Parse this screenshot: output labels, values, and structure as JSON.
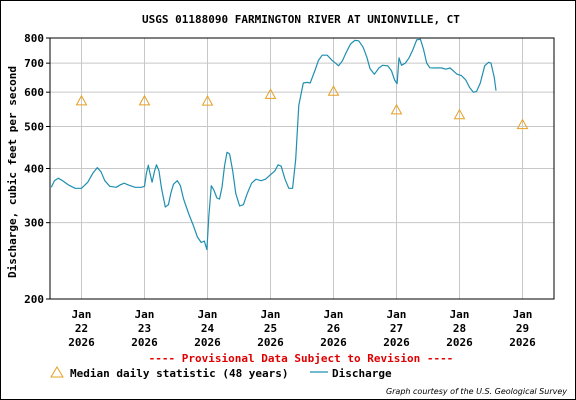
{
  "chart_data": {
    "type": "line",
    "title": "USGS 01188090 FARMINGTON RIVER AT UNIONVILLE, CT",
    "ylabel": "Discharge, cubic feet per second",
    "xlabel": "",
    "y_scale": "log",
    "ylim": [
      200,
      800
    ],
    "xlim": [
      21.5,
      29.5
    ],
    "y_ticks": [
      {
        "v": 200,
        "label": "200"
      },
      {
        "v": 300,
        "label": "300"
      },
      {
        "v": 400,
        "label": "400"
      },
      {
        "v": 500,
        "label": "500"
      },
      {
        "v": 600,
        "label": "600"
      },
      {
        "v": 700,
        "label": "700"
      },
      {
        "v": 800,
        "label": "800"
      }
    ],
    "x_ticks": [
      {
        "v": 22,
        "mon": "Jan",
        "day": "22",
        "year": "2026"
      },
      {
        "v": 23,
        "mon": "Jan",
        "day": "23",
        "year": "2026"
      },
      {
        "v": 24,
        "mon": "Jan",
        "day": "24",
        "year": "2026"
      },
      {
        "v": 25,
        "mon": "Jan",
        "day": "25",
        "year": "2026"
      },
      {
        "v": 26,
        "mon": "Jan",
        "day": "26",
        "year": "2026"
      },
      {
        "v": 27,
        "mon": "Jan",
        "day": "27",
        "year": "2026"
      },
      {
        "v": 28,
        "mon": "Jan",
        "day": "28",
        "year": "2026"
      },
      {
        "v": 29,
        "mon": "Jan",
        "day": "29",
        "year": "2026"
      }
    ],
    "grid": true,
    "series": [
      {
        "name": "Discharge",
        "color": "#1f8fb0",
        "style": "line",
        "points": [
          [
            21.52,
            362
          ],
          [
            21.57,
            375
          ],
          [
            21.63,
            380
          ],
          [
            21.7,
            375
          ],
          [
            21.8,
            366
          ],
          [
            21.9,
            360
          ],
          [
            22.0,
            360
          ],
          [
            22.1,
            372
          ],
          [
            22.18,
            390
          ],
          [
            22.25,
            402
          ],
          [
            22.31,
            393
          ],
          [
            22.37,
            375
          ],
          [
            22.45,
            364
          ],
          [
            22.55,
            362
          ],
          [
            22.62,
            367
          ],
          [
            22.68,
            370
          ],
          [
            22.75,
            366
          ],
          [
            22.85,
            362
          ],
          [
            22.95,
            362
          ],
          [
            23.0,
            364
          ],
          [
            23.03,
            390
          ],
          [
            23.06,
            407
          ],
          [
            23.09,
            388
          ],
          [
            23.12,
            372
          ],
          [
            23.16,
            395
          ],
          [
            23.19,
            408
          ],
          [
            23.23,
            395
          ],
          [
            23.27,
            360
          ],
          [
            23.33,
            326
          ],
          [
            23.38,
            330
          ],
          [
            23.42,
            352
          ],
          [
            23.46,
            368
          ],
          [
            23.52,
            375
          ],
          [
            23.57,
            365
          ],
          [
            23.62,
            340
          ],
          [
            23.7,
            315
          ],
          [
            23.77,
            297
          ],
          [
            23.84,
            278
          ],
          [
            23.9,
            270
          ],
          [
            23.95,
            272
          ],
          [
            23.99,
            260
          ],
          [
            24.02,
            310
          ],
          [
            24.06,
            365
          ],
          [
            24.1,
            357
          ],
          [
            24.15,
            342
          ],
          [
            24.19,
            340
          ],
          [
            24.23,
            362
          ],
          [
            24.27,
            405
          ],
          [
            24.31,
            436
          ],
          [
            24.35,
            432
          ],
          [
            24.4,
            395
          ],
          [
            24.45,
            350
          ],
          [
            24.51,
            328
          ],
          [
            24.57,
            330
          ],
          [
            24.63,
            350
          ],
          [
            24.7,
            370
          ],
          [
            24.77,
            378
          ],
          [
            24.85,
            375
          ],
          [
            24.92,
            378
          ],
          [
            25.0,
            387
          ],
          [
            25.07,
            395
          ],
          [
            25.12,
            408
          ],
          [
            25.17,
            405
          ],
          [
            25.23,
            378
          ],
          [
            25.29,
            360
          ],
          [
            25.35,
            360
          ],
          [
            25.4,
            420
          ],
          [
            25.45,
            560
          ],
          [
            25.52,
            630
          ],
          [
            25.58,
            632
          ],
          [
            25.63,
            630
          ],
          [
            25.7,
            670
          ],
          [
            25.76,
            710
          ],
          [
            25.82,
            730
          ],
          [
            25.9,
            730
          ],
          [
            25.97,
            712
          ],
          [
            26.03,
            700
          ],
          [
            26.08,
            690
          ],
          [
            26.14,
            708
          ],
          [
            26.2,
            740
          ],
          [
            26.27,
            775
          ],
          [
            26.34,
            790
          ],
          [
            26.4,
            788
          ],
          [
            26.47,
            762
          ],
          [
            26.53,
            722
          ],
          [
            26.58,
            680
          ],
          [
            26.65,
            660
          ],
          [
            26.72,
            682
          ],
          [
            26.78,
            692
          ],
          [
            26.86,
            690
          ],
          [
            26.92,
            672
          ],
          [
            26.97,
            640
          ],
          [
            27.01,
            628
          ],
          [
            27.04,
            720
          ],
          [
            27.08,
            692
          ],
          [
            27.14,
            700
          ],
          [
            27.2,
            720
          ],
          [
            27.26,
            752
          ],
          [
            27.32,
            792
          ],
          [
            27.38,
            795
          ],
          [
            27.43,
            752
          ],
          [
            27.48,
            700
          ],
          [
            27.53,
            683
          ],
          [
            27.6,
            682
          ],
          [
            27.66,
            683
          ],
          [
            27.72,
            682
          ],
          [
            27.78,
            678
          ],
          [
            27.85,
            682
          ],
          [
            27.9,
            672
          ],
          [
            27.96,
            660
          ],
          [
            28.03,
            655
          ],
          [
            28.1,
            640
          ],
          [
            28.16,
            615
          ],
          [
            28.22,
            600
          ],
          [
            28.27,
            602
          ],
          [
            28.33,
            630
          ],
          [
            28.4,
            690
          ],
          [
            28.46,
            703
          ],
          [
            28.5,
            700
          ],
          [
            28.55,
            650
          ],
          [
            28.58,
            605
          ]
        ]
      }
    ],
    "markers": {
      "name": "Median daily statistic (48 years)",
      "color": "#e6a020",
      "shape": "triangle",
      "points": [
        [
          22.0,
          573
        ],
        [
          23.0,
          573
        ],
        [
          24.0,
          572
        ],
        [
          25.0,
          593
        ],
        [
          26.0,
          603
        ],
        [
          27.0,
          546
        ],
        [
          28.0,
          532
        ],
        [
          29.0,
          505
        ]
      ]
    }
  },
  "notice": "---- Provisional Data Subject to Revision ----",
  "legend": {
    "median_label": "Median daily statistic (48 years)",
    "discharge_label": "Discharge"
  },
  "credit": "Graph courtesy of the U.S. Geological Survey"
}
